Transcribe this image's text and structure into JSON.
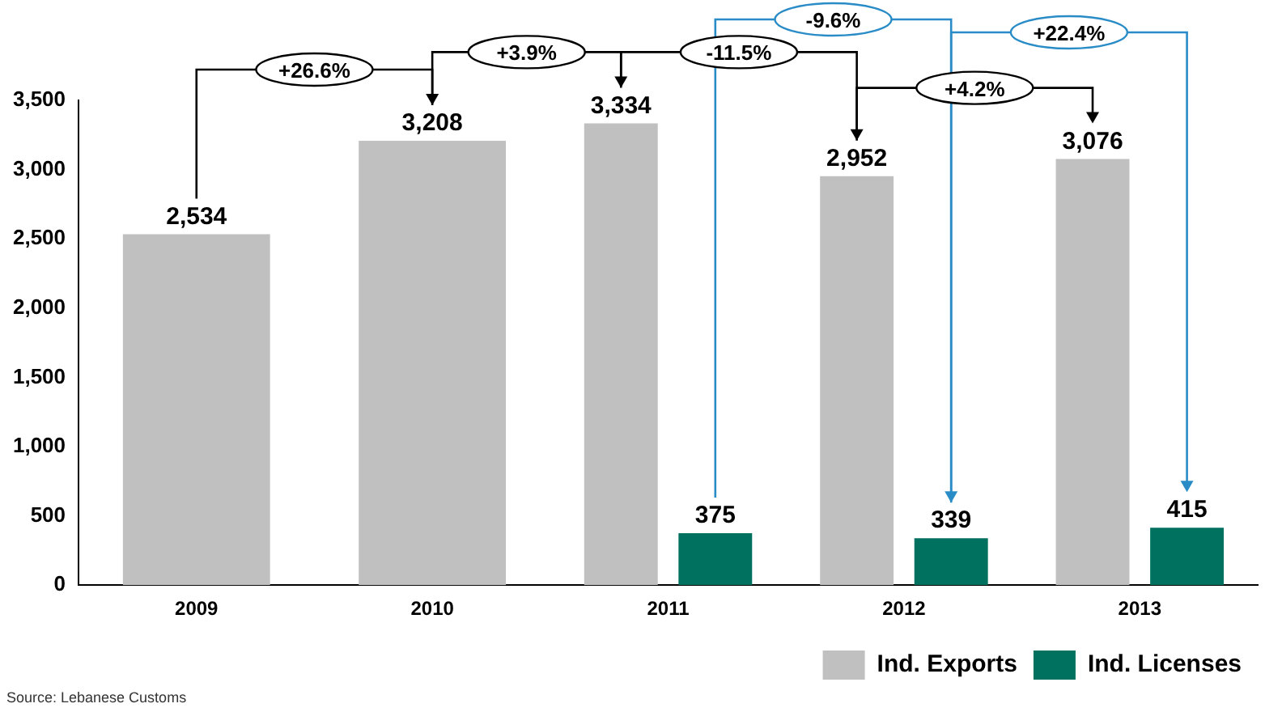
{
  "chart_data": {
    "type": "bar",
    "categories": [
      "2009",
      "2010",
      "2011",
      "2012",
      "2013"
    ],
    "series": [
      {
        "name": "Ind. Exports",
        "color": "#c0c0c0",
        "values": [
          2534,
          3208,
          3334,
          2952,
          3076
        ],
        "value_labels": [
          "2,534",
          "3,208",
          "3,334",
          "2,952",
          "3,076"
        ]
      },
      {
        "name": "Ind. Licenses",
        "color": "#00705f",
        "values": [
          null,
          null,
          375,
          339,
          415
        ],
        "value_labels": [
          null,
          null,
          "375",
          "339",
          "415"
        ]
      }
    ],
    "ylim": [
      0,
      3500
    ],
    "yticks": [
      0,
      500,
      {
        "value": 1000,
        "label": "1,000"
      },
      {
        "value": 1500,
        "label": "1,500"
      },
      {
        "value": 2000,
        "label": "2,000"
      },
      {
        "value": 2500,
        "label": "2,500"
      },
      {
        "value": 3000,
        "label": "3,000"
      },
      {
        "value": 3500,
        "label": "3,500"
      }
    ],
    "grid": false,
    "legend": "bottom right",
    "annotations": [
      "+26.6%",
      "+3.9%",
      "-11.5%",
      "+4.2%",
      "-9.6%",
      "+22.4%",
      "Source: Lebanese Customs"
    ]
  }
}
